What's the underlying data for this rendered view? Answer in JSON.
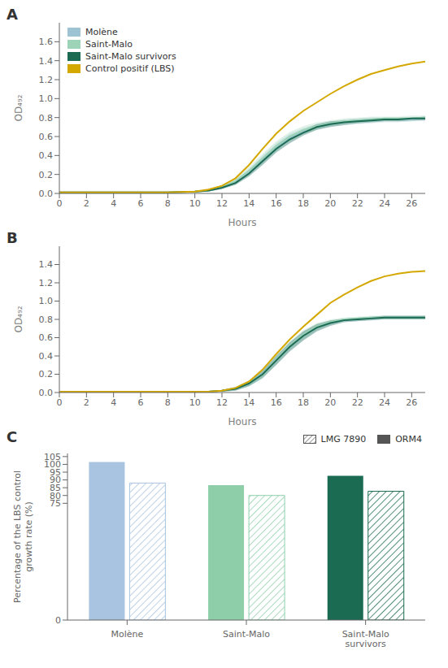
{
  "chart_data": [
    {
      "type": "line",
      "title": "A",
      "xlabel": "Hours",
      "ylabel": "OD₄₉₂",
      "x": [
        0,
        2,
        4,
        6,
        8,
        10,
        11,
        12,
        13,
        14,
        15,
        16,
        17,
        18,
        19,
        20,
        21,
        22,
        23,
        24,
        25,
        26,
        27
      ],
      "xlim": [
        0,
        27
      ],
      "xticks": [
        0,
        2,
        4,
        6,
        8,
        10,
        12,
        14,
        16,
        18,
        20,
        22,
        24,
        26
      ],
      "ylim": [
        0,
        1.8
      ],
      "yticks": [
        {
          "value": 0,
          "label": "0.0"
        },
        0.2,
        0.4,
        0.6,
        0.8,
        {
          "value": 1.0,
          "label": "1.0"
        },
        1.2,
        1.4,
        1.6
      ],
      "legend": "upper left",
      "series": [
        {
          "name": "Molène",
          "color": "#9ec4d4",
          "values": [
            0.01,
            0.01,
            0.01,
            0.01,
            0.01,
            0.02,
            0.03,
            0.06,
            0.12,
            0.22,
            0.35,
            0.48,
            0.58,
            0.65,
            0.7,
            0.73,
            0.75,
            0.76,
            0.77,
            0.78,
            0.78,
            0.78,
            0.79
          ],
          "upper": [
            0.01,
            0.01,
            0.01,
            0.01,
            0.01,
            0.02,
            0.04,
            0.08,
            0.15,
            0.26,
            0.4,
            0.53,
            0.63,
            0.69,
            0.73,
            0.76,
            0.78,
            0.79,
            0.8,
            0.8,
            0.8,
            0.8,
            0.81
          ],
          "lower": [
            0.01,
            0.01,
            0.01,
            0.01,
            0.01,
            0.01,
            0.02,
            0.04,
            0.09,
            0.18,
            0.3,
            0.43,
            0.53,
            0.61,
            0.67,
            0.7,
            0.72,
            0.73,
            0.74,
            0.75,
            0.75,
            0.76,
            0.77
          ]
        },
        {
          "name": "Saint-Malo",
          "color": "#9dd4b8",
          "values": [
            0.01,
            0.01,
            0.01,
            0.01,
            0.01,
            0.02,
            0.03,
            0.07,
            0.13,
            0.24,
            0.37,
            0.5,
            0.6,
            0.67,
            0.71,
            0.74,
            0.76,
            0.77,
            0.78,
            0.79,
            0.79,
            0.79,
            0.8
          ],
          "upper": [
            0.01,
            0.01,
            0.01,
            0.01,
            0.01,
            0.02,
            0.04,
            0.09,
            0.16,
            0.28,
            0.42,
            0.55,
            0.65,
            0.71,
            0.75,
            0.77,
            0.79,
            0.8,
            0.81,
            0.81,
            0.81,
            0.82,
            0.82
          ],
          "lower": [
            0.01,
            0.01,
            0.01,
            0.01,
            0.01,
            0.01,
            0.02,
            0.05,
            0.1,
            0.2,
            0.32,
            0.45,
            0.55,
            0.63,
            0.67,
            0.71,
            0.73,
            0.74,
            0.75,
            0.76,
            0.76,
            0.76,
            0.78
          ]
        },
        {
          "name": "Saint-Malo survivors",
          "color": "#1a6b52",
          "values": [
            0.01,
            0.01,
            0.01,
            0.01,
            0.01,
            0.02,
            0.03,
            0.06,
            0.11,
            0.21,
            0.34,
            0.47,
            0.57,
            0.64,
            0.7,
            0.73,
            0.75,
            0.76,
            0.77,
            0.78,
            0.78,
            0.79,
            0.79
          ],
          "upper": [
            0.01,
            0.01,
            0.01,
            0.01,
            0.01,
            0.02,
            0.04,
            0.07,
            0.13,
            0.24,
            0.38,
            0.51,
            0.61,
            0.67,
            0.73,
            0.76,
            0.77,
            0.78,
            0.79,
            0.8,
            0.8,
            0.8,
            0.81
          ],
          "lower": [
            0.01,
            0.01,
            0.01,
            0.01,
            0.01,
            0.01,
            0.02,
            0.05,
            0.09,
            0.18,
            0.3,
            0.43,
            0.53,
            0.61,
            0.67,
            0.7,
            0.72,
            0.74,
            0.75,
            0.76,
            0.76,
            0.77,
            0.77
          ]
        },
        {
          "name": "Control positif (LBS)",
          "color": "#d4a800",
          "values": [
            0.01,
            0.01,
            0.01,
            0.01,
            0.01,
            0.02,
            0.04,
            0.08,
            0.16,
            0.3,
            0.47,
            0.63,
            0.76,
            0.87,
            0.96,
            1.05,
            1.13,
            1.2,
            1.26,
            1.3,
            1.34,
            1.37,
            1.39
          ]
        }
      ]
    },
    {
      "type": "line",
      "title": "B",
      "xlabel": "Hours",
      "ylabel": "OD₄₉₂",
      "x": [
        0,
        2,
        4,
        6,
        8,
        10,
        11,
        12,
        13,
        14,
        15,
        16,
        17,
        18,
        19,
        20,
        21,
        22,
        23,
        24,
        25,
        26,
        27
      ],
      "xlim": [
        0,
        27
      ],
      "xticks": [
        0,
        2,
        4,
        6,
        8,
        10,
        12,
        14,
        16,
        18,
        20,
        22,
        24,
        26
      ],
      "ylim": [
        0,
        1.6
      ],
      "yticks": [
        {
          "value": 0,
          "label": "0.0"
        },
        0.2,
        0.4,
        0.6,
        0.8,
        {
          "value": 1.0,
          "label": "1.0"
        },
        1.2,
        1.4
      ],
      "series": [
        {
          "color": "#9ec4d4",
          "values": [
            0.01,
            0.01,
            0.01,
            0.01,
            0.01,
            0.01,
            0.01,
            0.02,
            0.04,
            0.1,
            0.2,
            0.35,
            0.5,
            0.62,
            0.71,
            0.76,
            0.79,
            0.8,
            0.81,
            0.82,
            0.82,
            0.82,
            0.82
          ],
          "upper": [
            0.01,
            0.01,
            0.01,
            0.01,
            0.01,
            0.01,
            0.01,
            0.03,
            0.06,
            0.13,
            0.24,
            0.4,
            0.55,
            0.67,
            0.75,
            0.79,
            0.81,
            0.82,
            0.83,
            0.84,
            0.84,
            0.84,
            0.84
          ],
          "lower": [
            0.01,
            0.01,
            0.01,
            0.01,
            0.01,
            0.01,
            0.01,
            0.01,
            0.02,
            0.07,
            0.16,
            0.3,
            0.45,
            0.57,
            0.67,
            0.73,
            0.77,
            0.78,
            0.79,
            0.8,
            0.8,
            0.8,
            0.8
          ]
        },
        {
          "color": "#9dd4b8",
          "values": [
            0.01,
            0.01,
            0.01,
            0.01,
            0.01,
            0.01,
            0.01,
            0.02,
            0.04,
            0.1,
            0.2,
            0.36,
            0.51,
            0.63,
            0.72,
            0.77,
            0.8,
            0.81,
            0.82,
            0.82,
            0.82,
            0.82,
            0.82
          ],
          "upper": [
            0.01,
            0.01,
            0.01,
            0.01,
            0.01,
            0.01,
            0.01,
            0.03,
            0.06,
            0.13,
            0.25,
            0.41,
            0.56,
            0.68,
            0.76,
            0.8,
            0.82,
            0.83,
            0.84,
            0.84,
            0.84,
            0.84,
            0.84
          ],
          "lower": [
            0.01,
            0.01,
            0.01,
            0.01,
            0.01,
            0.01,
            0.01,
            0.01,
            0.02,
            0.07,
            0.15,
            0.31,
            0.46,
            0.58,
            0.68,
            0.74,
            0.78,
            0.79,
            0.8,
            0.8,
            0.8,
            0.8,
            0.8
          ]
        },
        {
          "color": "#1a6b52",
          "values": [
            0.01,
            0.01,
            0.01,
            0.01,
            0.01,
            0.01,
            0.01,
            0.02,
            0.04,
            0.1,
            0.2,
            0.35,
            0.5,
            0.62,
            0.71,
            0.76,
            0.79,
            0.8,
            0.81,
            0.82,
            0.82,
            0.82,
            0.82
          ],
          "upper": [
            0.01,
            0.01,
            0.01,
            0.01,
            0.01,
            0.01,
            0.01,
            0.03,
            0.06,
            0.13,
            0.24,
            0.4,
            0.55,
            0.67,
            0.75,
            0.79,
            0.81,
            0.82,
            0.83,
            0.84,
            0.84,
            0.84,
            0.84
          ],
          "lower": [
            0.01,
            0.01,
            0.01,
            0.01,
            0.01,
            0.01,
            0.01,
            0.01,
            0.02,
            0.07,
            0.16,
            0.3,
            0.45,
            0.57,
            0.67,
            0.73,
            0.77,
            0.78,
            0.79,
            0.8,
            0.8,
            0.8,
            0.8
          ]
        },
        {
          "color": "#d4a800",
          "values": [
            0.01,
            0.01,
            0.01,
            0.01,
            0.01,
            0.01,
            0.01,
            0.02,
            0.05,
            0.12,
            0.25,
            0.42,
            0.58,
            0.72,
            0.85,
            0.98,
            1.07,
            1.15,
            1.22,
            1.27,
            1.3,
            1.32,
            1.33
          ]
        }
      ]
    },
    {
      "type": "bar",
      "title": "C",
      "ylabel": "Percentage of the LBS control\ngrowth rate (%)",
      "categories": [
        "Molène",
        "Saint-Malo",
        "Saint-Malo\nsurvivors"
      ],
      "ylim": [
        0,
        107
      ],
      "yticks": [
        0,
        75,
        80,
        85,
        90,
        95,
        100,
        105
      ],
      "legend": "upper right",
      "series": [
        {
          "name": "ORM4",
          "color": "#555555",
          "colors": [
            "#a8c4e0",
            "#8ecfaa",
            "#1a6b52"
          ],
          "values": [
            101.5,
            86.7,
            92.7
          ]
        },
        {
          "name": "LMG 7890",
          "color": "#555555",
          "colors": [
            "#a8c4e0",
            "#8ecfaa",
            "#1a6b52"
          ],
          "values": [
            88.0,
            80.0,
            82.7
          ]
        }
      ]
    }
  ]
}
